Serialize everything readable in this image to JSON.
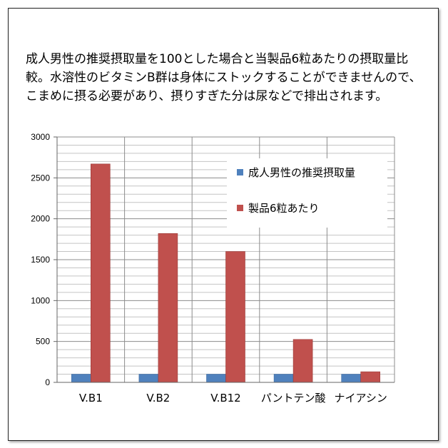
{
  "chart_data": {
    "type": "bar",
    "title": "成人男性の推奨摂取量を100とした場合と当製品6粒あたりの摂取量比較。水溶性のビタミンB群は身体にストックすることができませんので、こまめに摂る必要があり、摂りすぎた分は尿などで排出されます。",
    "xlabel": "",
    "ylabel": "",
    "categories": [
      "V.B1",
      "V.B2",
      "V.B12",
      "パントテン酸",
      "ナイアシン"
    ],
    "series": [
      {
        "name": "成人男性の推奨摂取量",
        "color": "#4f81bd",
        "values": [
          100,
          100,
          100,
          100,
          100
        ]
      },
      {
        "name": "製品6粒あたり",
        "color": "#c0504d",
        "values": [
          2670,
          1820,
          1600,
          525,
          130
        ]
      }
    ],
    "ylim": [
      0,
      3000
    ],
    "yticks": [
      0,
      500,
      1000,
      1500,
      2000,
      2500,
      3000
    ],
    "grid": true,
    "legend_position": "top-right"
  }
}
